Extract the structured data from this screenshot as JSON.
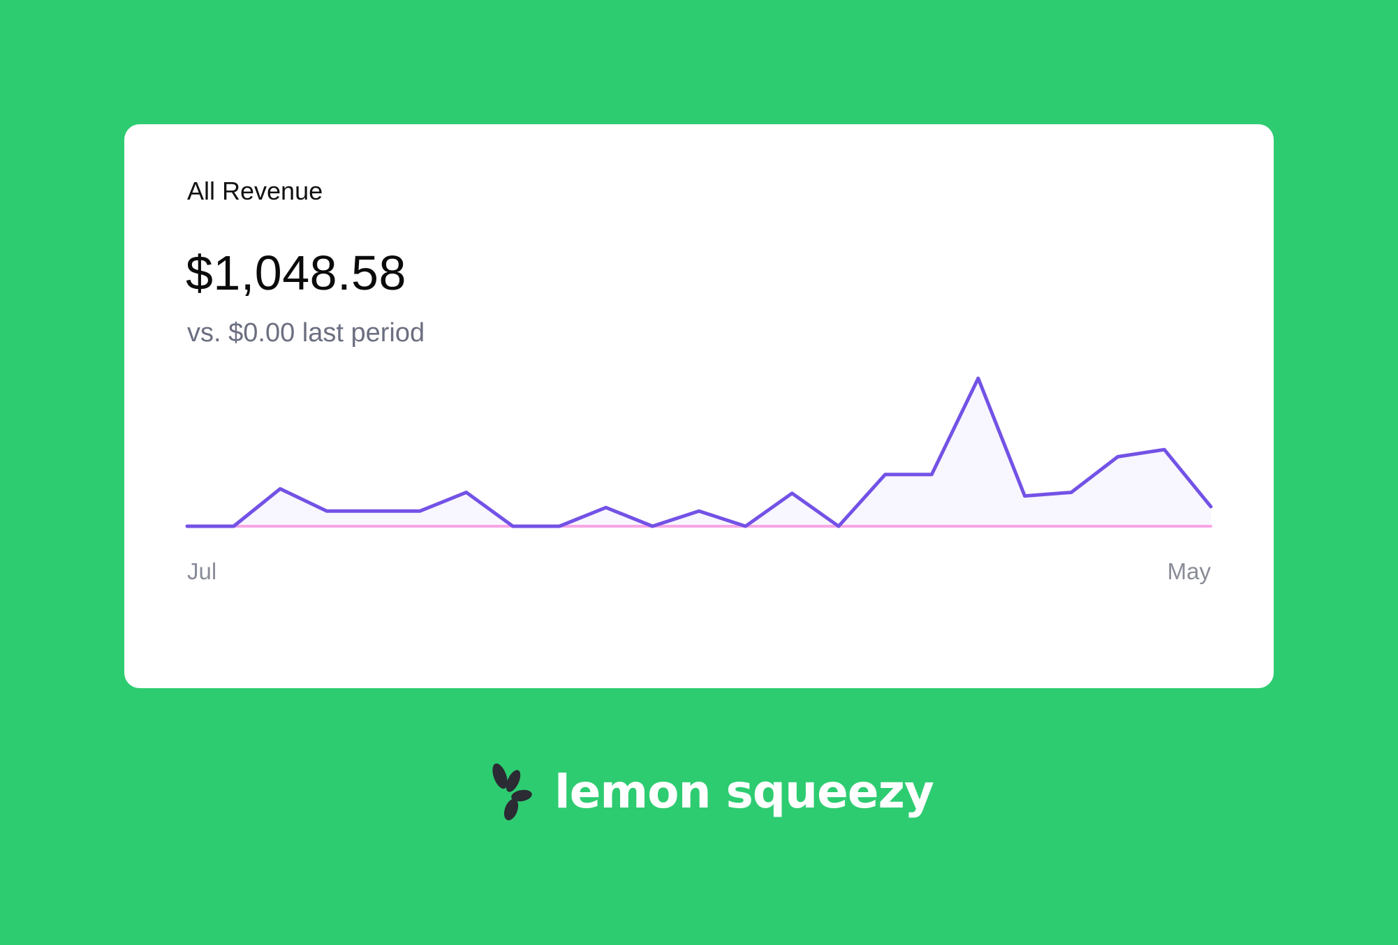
{
  "card": {
    "title": "All Revenue",
    "value": "$1,048.58",
    "comparison": "vs. $0.00 last period"
  },
  "brand": {
    "name": "lemon squeezy",
    "icon": "lemon-squeezy-logo-icon"
  },
  "colors": {
    "background": "#2ECC71",
    "card": "#FFFFFF",
    "current_series": "#7352E6",
    "current_fill": "#F8F6FE",
    "previous_series": "#F7A6E6",
    "brand_icon": "#2B2B33"
  },
  "chart_data": {
    "type": "area",
    "x_tick_labels": [
      "Jul",
      "May"
    ],
    "grid": false,
    "legend": "none",
    "series": [
      {
        "values": [
          0,
          0,
          42,
          17,
          17,
          17,
          38,
          0,
          0,
          21,
          0,
          17,
          0,
          37,
          0,
          58,
          58,
          166,
          34,
          38,
          78,
          86,
          22
        ]
      },
      {
        "values": [
          0,
          0,
          0,
          0,
          0,
          0,
          0,
          0,
          0,
          0,
          0,
          0,
          0,
          0,
          0,
          0,
          0,
          0,
          0,
          0,
          0,
          0,
          0
        ]
      }
    ]
  }
}
